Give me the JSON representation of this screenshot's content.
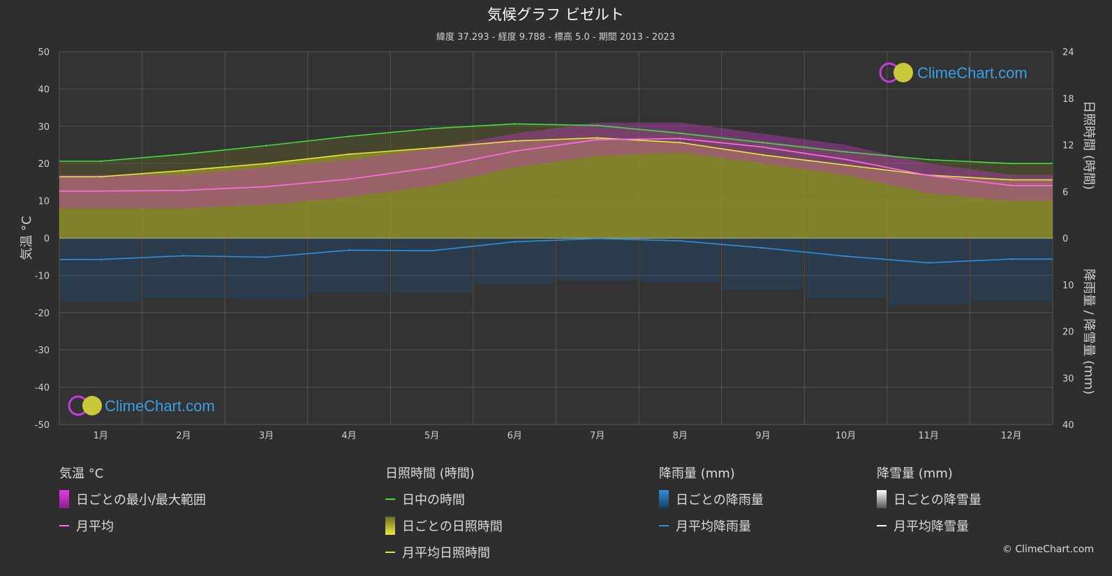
{
  "header": {
    "title": "気候グラフ ビゼルト",
    "subtitle": "緯度 37.293 - 経度 9.788 - 標高 5.0 - 期間 2013 - 2023"
  },
  "logo_text": "ClimeChart.com",
  "copyright": "© ClimeChart.com",
  "chart_data": {
    "type": "line",
    "months": [
      "1月",
      "2月",
      "3月",
      "4月",
      "5月",
      "6月",
      "7月",
      "8月",
      "9月",
      "10月",
      "11月",
      "12月"
    ],
    "left_axis": {
      "label": "気温 °C",
      "ticks": [
        50,
        40,
        30,
        20,
        10,
        0,
        -10,
        -20,
        -30,
        -40,
        -50
      ],
      "range": [
        -50,
        50
      ]
    },
    "right_axis_top": {
      "label": "日照時間 (時間)",
      "ticks": [
        24,
        18,
        12,
        6,
        0
      ],
      "range": [
        0,
        24
      ]
    },
    "right_axis_bottom": {
      "label": "降雨量 / 降雪量 (mm)",
      "ticks": [
        0,
        10,
        20,
        30,
        40
      ],
      "range": [
        0,
        40
      ]
    },
    "series": [
      {
        "name": "日中の時間",
        "unit": "hours",
        "color": "#3ee03e",
        "values": [
          9.9,
          10.8,
          11.9,
          13.1,
          14.1,
          14.7,
          14.5,
          13.5,
          12.3,
          11.1,
          10.1,
          9.6
        ]
      },
      {
        "name": "月平均日照時間",
        "unit": "hours",
        "color": "#e8e83a",
        "values": [
          7.9,
          8.7,
          9.6,
          10.8,
          11.6,
          12.5,
          12.9,
          12.3,
          10.7,
          9.4,
          8.1,
          7.5
        ]
      },
      {
        "name": "月平均",
        "unit": "°C",
        "color": "#ff6ee8",
        "values": [
          12.6,
          12.8,
          13.8,
          15.8,
          18.9,
          23.3,
          26.4,
          26.7,
          24.4,
          21.1,
          16.8,
          14.1
        ]
      },
      {
        "name": "月平均降雨量",
        "unit": "mm",
        "color": "#2f8fe0",
        "values": [
          4.6,
          3.8,
          4.1,
          2.6,
          2.7,
          0.8,
          0.1,
          0.6,
          2.1,
          3.9,
          5.3,
          4.5
        ]
      },
      {
        "name": "月平均降雪量",
        "unit": "mm",
        "color": "#ffffff",
        "values": [
          0,
          0,
          0,
          0,
          0,
          0,
          0,
          0,
          0,
          0,
          0,
          0
        ]
      }
    ],
    "daily_temp_range": {
      "min": [
        8,
        8,
        9,
        11,
        14,
        19,
        22,
        23,
        20,
        17,
        12,
        10
      ],
      "max": [
        17,
        17,
        19,
        21,
        24,
        28,
        31,
        31,
        28,
        25,
        20,
        17
      ]
    },
    "grid": true
  },
  "legend": {
    "temperature": {
      "heading": "気温 °C",
      "items": [
        "日ごとの最小/最大範囲",
        "月平均"
      ]
    },
    "sunshine": {
      "heading": "日照時間 (時間)",
      "items": [
        "日中の時間",
        "日ごとの日照時間",
        "月平均日照時間"
      ]
    },
    "rain": {
      "heading": "降雨量 (mm)",
      "items": [
        "日ごとの降雨量",
        "月平均降雨量"
      ]
    },
    "snow": {
      "heading": "降雪量 (mm)",
      "items": [
        "日ごとの降雪量",
        "月平均降雪量"
      ]
    }
  },
  "colors": {
    "background": "#2e2e2e",
    "plot_bg": "#333333",
    "grid": "#555555",
    "sun_fill": "#8f8f2a",
    "temp_fill": "#b43cb4",
    "rain_fill": "#1d4f7a"
  }
}
